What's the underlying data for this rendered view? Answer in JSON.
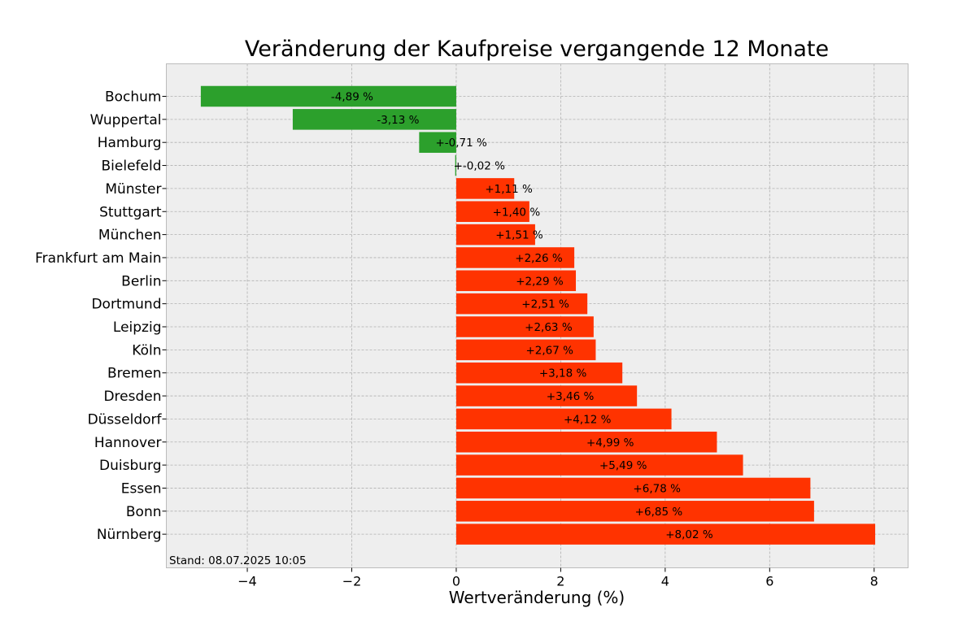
{
  "chart_data": {
    "type": "bar",
    "orientation": "horizontal",
    "title": "Veränderung der Kaufpreise vergangende 12 Monate",
    "xlabel": "Wertveränderung (%)",
    "ylabel": "",
    "xlim": [
      -5.55,
      8.65
    ],
    "xticks": [
      -4,
      -2,
      0,
      2,
      4,
      6,
      8
    ],
    "xtick_labels": [
      "−4",
      "−2",
      "0",
      "2",
      "4",
      "6",
      "8"
    ],
    "grid": true,
    "categories": [
      "Bochum",
      "Wuppertal",
      "Hamburg",
      "Bielefeld",
      "Münster",
      "Stuttgart",
      "München",
      "Frankfurt am Main",
      "Berlin",
      "Dortmund",
      "Leipzig",
      "Köln",
      "Bremen",
      "Dresden",
      "Düsseldorf",
      "Hannover",
      "Duisburg",
      "Essen",
      "Bonn",
      "Nürnberg"
    ],
    "values": [
      -4.89,
      -3.13,
      -0.71,
      -0.02,
      1.11,
      1.4,
      1.51,
      2.26,
      2.29,
      2.51,
      2.63,
      2.67,
      3.18,
      3.46,
      4.12,
      4.99,
      5.49,
      6.78,
      6.85,
      8.02
    ],
    "value_labels": [
      "-4,89 %",
      "-3,13 %",
      "+-0,71 %",
      "+-0,02 %",
      "+1,11 %",
      "+1,40 %",
      "+1,51 %",
      "+2,26 %",
      "+2,29 %",
      "+2,51 %",
      "+2,63 %",
      "+2,67 %",
      "+3,18 %",
      "+3,46 %",
      "+4,12 %",
      "+4,99 %",
      "+5,49 %",
      "+6,78 %",
      "+6,85 %",
      "+8,02 %"
    ],
    "colors": {
      "negative": "#2ca02c",
      "positive": "#ff3300",
      "plot_background": "#eeeeee",
      "grid": "#b0b0b0",
      "frame": "#bcbcbc"
    },
    "annotation": "Stand: 08.07.2025 10:05"
  }
}
